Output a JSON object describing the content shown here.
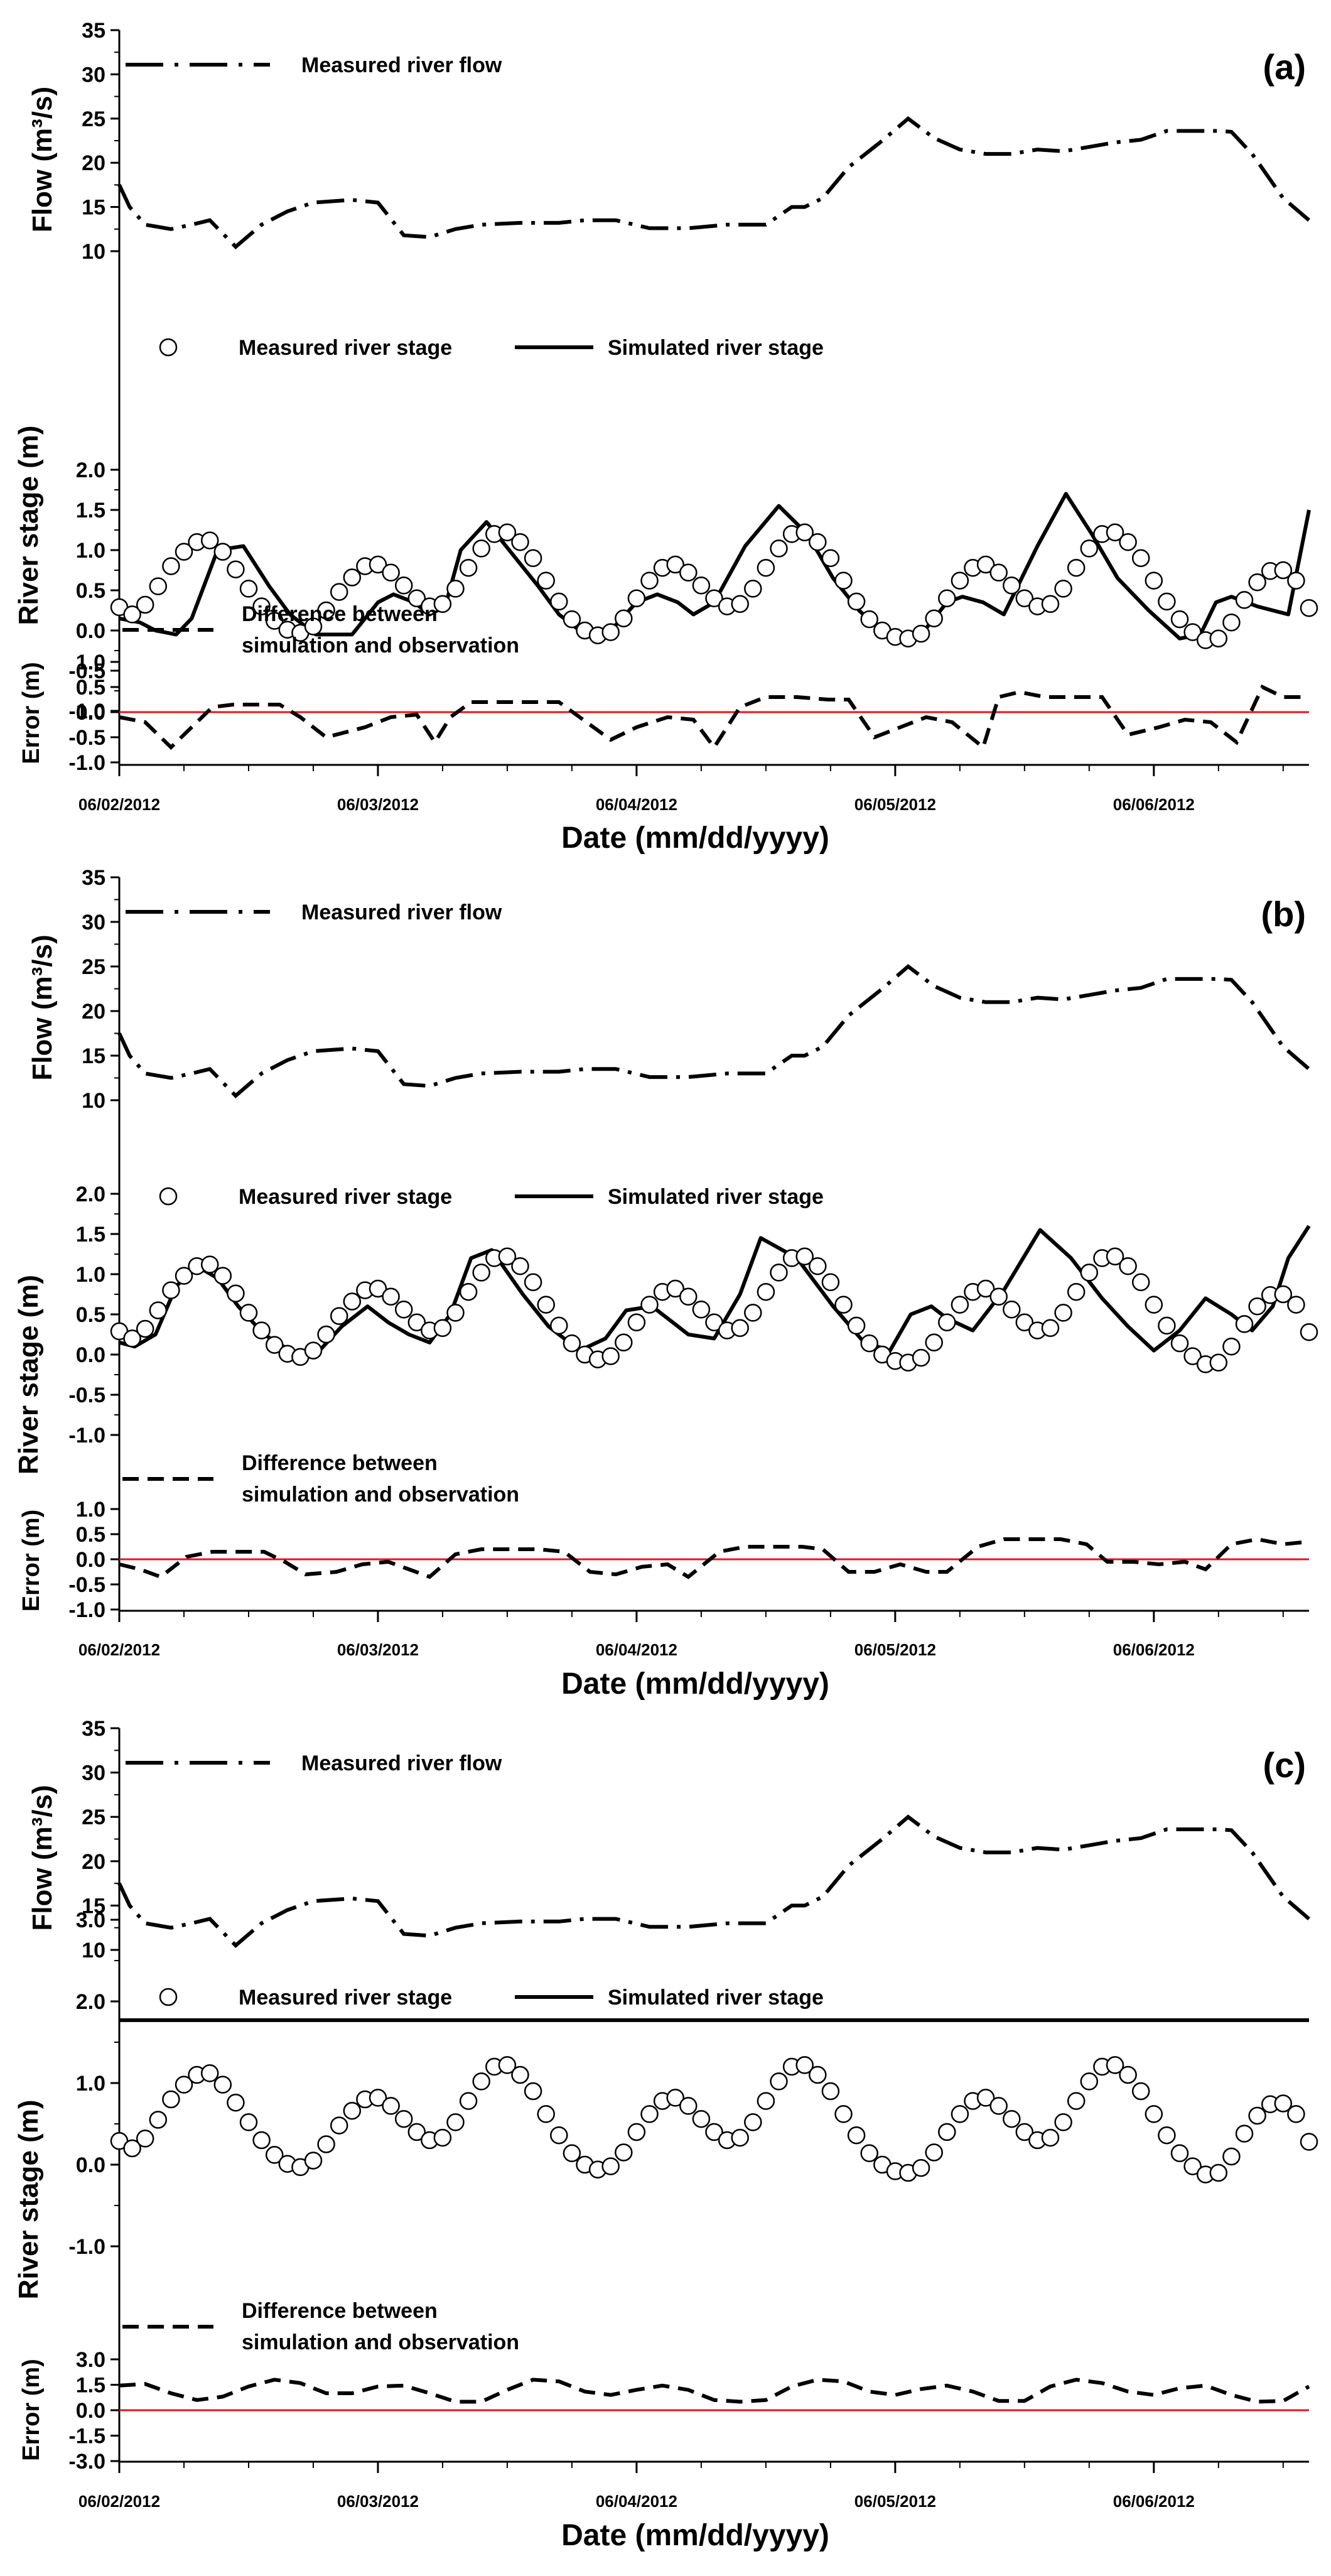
{
  "figure": {
    "panels": [
      {
        "label": "(a)",
        "flow_legend": "Measured river flow",
        "stage_legend_measured": "Measured river stage",
        "stage_legend_simulated": "Simulated river stage",
        "error_legend_line1": "Difference between",
        "error_legend_line2": "simulation and observation",
        "flow_ylabel": "Flow (m³/s)",
        "stage_ylabel": "River stage (m)",
        "error_ylabel": "Error (m)",
        "xlabel": "Date (mm/dd/yyyy)"
      },
      {
        "label": "(b)",
        "flow_legend": "Measured river flow",
        "stage_legend_measured": "Measured river stage",
        "stage_legend_simulated": "Simulated river stage",
        "error_legend_line1": "Difference between",
        "error_legend_line2": "simulation and observation",
        "flow_ylabel": "Flow (m³/s)",
        "stage_ylabel": "River stage (m)",
        "error_ylabel": "Error (m)",
        "xlabel": "Date (mm/dd/yyyy)"
      },
      {
        "label": "(c)",
        "flow_legend": "Measured river flow",
        "stage_legend_measured": "Measured river stage",
        "stage_legend_simulated": "Simulated river stage",
        "error_legend_line1": "Difference between",
        "error_legend_line2": "simulation and observation",
        "flow_ylabel": "Flow (m³/s)",
        "stage_ylabel": "River stage (m)",
        "error_ylabel": "Error (m)",
        "xlabel": "Date (mm/dd/yyyy)"
      }
    ]
  },
  "chart_data": {
    "type": "line",
    "x_range_days": [
      0,
      4.6
    ],
    "date_ticks": [
      "06/02/2012",
      "06/03/2012",
      "06/04/2012",
      "06/05/2012",
      "06/06/2012"
    ],
    "flow": {
      "ylim": [
        10,
        35
      ],
      "ticks": [
        "10",
        "15",
        "20",
        "25",
        "30",
        "35"
      ],
      "series_name": "Measured river flow",
      "t": [
        0,
        0.04,
        0.1,
        0.2,
        0.28,
        0.35,
        0.45,
        0.55,
        0.65,
        0.75,
        0.9,
        1.0,
        1.1,
        1.2,
        1.3,
        1.4,
        1.55,
        1.7,
        1.8,
        1.92,
        2.05,
        2.2,
        2.35,
        2.5,
        2.6,
        2.65,
        2.72,
        2.82,
        2.95,
        3.05,
        3.15,
        3.25,
        3.35,
        3.45,
        3.55,
        3.65,
        3.75,
        3.85,
        3.95,
        4.05,
        4.15,
        4.25,
        4.3,
        4.38,
        4.5,
        4.6
      ],
      "values": [
        17.5,
        15,
        13,
        12.5,
        13,
        13.5,
        10.5,
        13,
        14.5,
        15.5,
        15.8,
        15.5,
        11.8,
        11.6,
        12.5,
        13,
        13.2,
        13.2,
        13.5,
        13.5,
        12.6,
        12.6,
        13,
        13,
        15,
        15,
        16,
        19.5,
        22.5,
        25,
        22.8,
        21.5,
        21,
        21,
        21.5,
        21.3,
        21.8,
        22.3,
        22.6,
        23.6,
        23.6,
        23.6,
        23.5,
        21,
        16,
        13.5
      ]
    },
    "stage": {
      "ticks": [
        "-1.0",
        "-0.5",
        "0.0",
        "0.5",
        "1.0",
        "1.5",
        "2.0"
      ],
      "ticks_c": [
        "-1.0",
        "0.0",
        "1.0",
        "2.0",
        "3.0"
      ],
      "measured": {
        "name": "Measured river stage",
        "t": [
          0,
          0.05,
          0.1,
          0.15,
          0.2,
          0.25,
          0.3,
          0.35,
          0.4,
          0.45,
          0.5,
          0.55,
          0.6,
          0.65,
          0.7,
          0.75,
          0.8,
          0.85,
          0.9,
          0.95,
          1.0,
          1.05,
          1.1,
          1.15,
          1.2,
          1.25,
          1.3,
          1.35,
          1.4,
          1.45,
          1.5,
          1.55,
          1.6,
          1.65,
          1.7,
          1.75,
          1.8,
          1.85,
          1.9,
          1.95,
          2.0,
          2.05,
          2.1,
          2.15,
          2.2,
          2.25,
          2.3,
          2.35,
          2.4,
          2.45,
          2.5,
          2.55,
          2.6,
          2.65,
          2.7,
          2.75,
          2.8,
          2.85,
          2.9,
          2.95,
          3.0,
          3.05,
          3.1,
          3.15,
          3.2,
          3.25,
          3.3,
          3.35,
          3.4,
          3.45,
          3.5,
          3.55,
          3.6,
          3.65,
          3.7,
          3.75,
          3.8,
          3.85,
          3.9,
          3.95,
          4.0,
          4.05,
          4.1,
          4.15,
          4.2,
          4.25,
          4.3,
          4.35,
          4.4,
          4.45,
          4.5,
          4.55,
          4.6
        ],
        "values": [
          0.29,
          0.2,
          0.32,
          0.55,
          0.8,
          0.98,
          1.1,
          1.12,
          0.98,
          0.76,
          0.52,
          0.3,
          0.12,
          0.01,
          -0.03,
          0.05,
          0.25,
          0.48,
          0.66,
          0.8,
          0.82,
          0.72,
          0.56,
          0.4,
          0.3,
          0.33,
          0.52,
          0.78,
          1.02,
          1.2,
          1.22,
          1.1,
          0.9,
          0.62,
          0.36,
          0.14,
          0.0,
          -0.06,
          -0.02,
          0.15,
          0.4,
          0.62,
          0.78,
          0.82,
          0.72,
          0.56,
          0.4,
          0.3,
          0.33,
          0.52,
          0.78,
          1.02,
          1.2,
          1.22,
          1.1,
          0.9,
          0.62,
          0.36,
          0.14,
          0.0,
          -0.08,
          -0.1,
          -0.04,
          0.15,
          0.4,
          0.62,
          0.78,
          0.82,
          0.72,
          0.56,
          0.4,
          0.3,
          0.33,
          0.52,
          0.78,
          1.02,
          1.2,
          1.22,
          1.1,
          0.9,
          0.62,
          0.36,
          0.14,
          -0.02,
          -0.12,
          -0.1,
          0.1,
          0.38,
          0.6,
          0.74,
          0.75,
          0.62,
          0.28
        ]
      },
      "simulated_a": {
        "name": "Simulated river stage",
        "t": [
          0,
          0.08,
          0.14,
          0.22,
          0.28,
          0.38,
          0.48,
          0.58,
          0.66,
          0.76,
          0.9,
          1.0,
          1.06,
          1.14,
          1.2,
          1.26,
          1.32,
          1.42,
          1.52,
          1.62,
          1.7,
          1.8,
          1.9,
          2.0,
          2.08,
          2.16,
          2.22,
          2.3,
          2.42,
          2.55,
          2.66,
          2.76,
          2.86,
          2.98,
          3.1,
          3.2,
          3.26,
          3.34,
          3.42,
          3.55,
          3.66,
          3.76,
          3.86,
          3.98,
          4.1,
          4.18,
          4.24,
          4.3,
          4.4,
          4.52,
          4.6
        ],
        "values": [
          0.15,
          0.1,
          0.0,
          -0.05,
          0.15,
          1.0,
          1.05,
          0.55,
          0.2,
          -0.05,
          -0.05,
          0.35,
          0.45,
          0.35,
          0.2,
          0.3,
          1.0,
          1.35,
          0.95,
          0.55,
          0.2,
          -0.05,
          0.0,
          0.35,
          0.45,
          0.35,
          0.2,
          0.35,
          1.05,
          1.55,
          1.2,
          0.65,
          0.25,
          -0.1,
          -0.05,
          0.35,
          0.42,
          0.35,
          0.2,
          1.05,
          1.7,
          1.2,
          0.65,
          0.25,
          -0.1,
          -0.05,
          0.35,
          0.42,
          0.3,
          0.2,
          1.5
        ]
      },
      "simulated_b": {
        "name": "Simulated river stage",
        "t": [
          0,
          0.06,
          0.14,
          0.22,
          0.3,
          0.38,
          0.46,
          0.56,
          0.66,
          0.76,
          0.86,
          0.96,
          1.04,
          1.12,
          1.2,
          1.28,
          1.36,
          1.44,
          1.56,
          1.66,
          1.78,
          1.88,
          1.96,
          2.06,
          2.14,
          2.2,
          2.3,
          2.4,
          2.48,
          2.62,
          2.76,
          2.88,
          2.98,
          3.06,
          3.14,
          3.2,
          3.3,
          3.42,
          3.56,
          3.68,
          3.8,
          3.9,
          4.0,
          4.1,
          4.2,
          4.3,
          4.38,
          4.46,
          4.52,
          4.6
        ],
        "values": [
          0.15,
          0.1,
          0.25,
          0.85,
          1.1,
          0.95,
          0.6,
          0.25,
          0.05,
          0.0,
          0.35,
          0.6,
          0.4,
          0.25,
          0.15,
          0.5,
          1.2,
          1.3,
          0.75,
          0.35,
          0.05,
          0.2,
          0.55,
          0.6,
          0.4,
          0.25,
          0.2,
          0.75,
          1.45,
          1.2,
          0.6,
          0.15,
          0.05,
          0.5,
          0.6,
          0.45,
          0.3,
          0.8,
          1.55,
          1.2,
          0.7,
          0.35,
          0.05,
          0.3,
          0.7,
          0.5,
          0.3,
          0.6,
          1.2,
          1.6
        ]
      },
      "simulated_c_constant": 1.77
    },
    "error": {
      "ticks": [
        "-1.0",
        "-0.5",
        "0.0",
        "0.5",
        "1.0"
      ],
      "ticks_c": [
        "-3.0",
        "-1.5",
        "0.0",
        "1.5",
        "3.0"
      ],
      "a": {
        "name": "Difference between simulation and observation",
        "t": [
          0,
          0.1,
          0.2,
          0.28,
          0.36,
          0.44,
          0.56,
          0.62,
          0.7,
          0.8,
          0.95,
          1.05,
          1.15,
          1.22,
          1.28,
          1.36,
          1.48,
          1.56,
          1.64,
          1.7,
          1.78,
          1.9,
          2.0,
          2.12,
          2.22,
          2.3,
          2.4,
          2.5,
          2.62,
          2.74,
          2.82,
          2.92,
          3.02,
          3.12,
          3.22,
          3.34,
          3.4,
          3.48,
          3.58,
          3.68,
          3.8,
          3.9,
          4.02,
          4.12,
          4.22,
          4.32,
          4.42,
          4.5,
          4.6
        ],
        "values": [
          -0.1,
          -0.2,
          -0.7,
          -0.3,
          0.1,
          0.15,
          0.15,
          0.15,
          -0.1,
          -0.5,
          -0.3,
          -0.1,
          -0.05,
          -0.6,
          -0.1,
          0.2,
          0.2,
          0.2,
          0.2,
          0.2,
          -0.1,
          -0.55,
          -0.3,
          -0.1,
          -0.15,
          -0.7,
          0.1,
          0.3,
          0.3,
          0.25,
          0.25,
          -0.5,
          -0.3,
          -0.1,
          -0.2,
          -0.7,
          0.3,
          0.4,
          0.3,
          0.3,
          0.3,
          -0.45,
          -0.3,
          -0.15,
          -0.2,
          -0.6,
          0.5,
          0.3,
          0.3
        ]
      },
      "b": {
        "name": "Difference between simulation and observation",
        "t": [
          0,
          0.08,
          0.16,
          0.26,
          0.36,
          0.46,
          0.56,
          0.64,
          0.72,
          0.84,
          0.94,
          1.04,
          1.12,
          1.2,
          1.3,
          1.4,
          1.52,
          1.62,
          1.72,
          1.82,
          1.92,
          2.02,
          2.12,
          2.2,
          2.32,
          2.42,
          2.54,
          2.64,
          2.72,
          2.82,
          2.92,
          3.02,
          3.12,
          3.2,
          3.32,
          3.42,
          3.54,
          3.64,
          3.74,
          3.82,
          3.92,
          4.02,
          4.12,
          4.2,
          4.3,
          4.4,
          4.5,
          4.6
        ],
        "values": [
          -0.1,
          -0.2,
          -0.35,
          0.05,
          0.15,
          0.15,
          0.15,
          -0.05,
          -0.3,
          -0.25,
          -0.1,
          -0.05,
          -0.2,
          -0.35,
          0.1,
          0.2,
          0.2,
          0.2,
          0.15,
          -0.25,
          -0.3,
          -0.15,
          -0.1,
          -0.35,
          0.15,
          0.25,
          0.25,
          0.25,
          0.2,
          -0.25,
          -0.25,
          -0.1,
          -0.25,
          -0.25,
          0.25,
          0.4,
          0.4,
          0.4,
          0.3,
          -0.05,
          -0.05,
          -0.1,
          -0.05,
          -0.2,
          0.3,
          0.4,
          0.3,
          0.35
        ]
      },
      "c": {
        "name": "Difference between simulation and observation",
        "t": [
          0,
          0.1,
          0.2,
          0.3,
          0.4,
          0.5,
          0.6,
          0.7,
          0.8,
          0.9,
          1.0,
          1.1,
          1.2,
          1.3,
          1.4,
          1.5,
          1.6,
          1.7,
          1.8,
          1.9,
          2.0,
          2.1,
          2.2,
          2.3,
          2.4,
          2.5,
          2.6,
          2.7,
          2.8,
          2.9,
          3.0,
          3.1,
          3.2,
          3.3,
          3.4,
          3.5,
          3.6,
          3.7,
          3.8,
          3.9,
          4.0,
          4.1,
          4.2,
          4.3,
          4.4,
          4.5,
          4.6
        ],
        "values": [
          1.45,
          1.55,
          1.0,
          0.6,
          0.8,
          1.4,
          1.8,
          1.6,
          1.0,
          1.0,
          1.4,
          1.45,
          1.0,
          0.5,
          0.5,
          1.2,
          1.8,
          1.7,
          1.1,
          0.9,
          1.2,
          1.45,
          1.2,
          0.6,
          0.5,
          0.6,
          1.4,
          1.8,
          1.7,
          1.1,
          0.9,
          1.25,
          1.45,
          1.1,
          0.55,
          0.55,
          1.4,
          1.8,
          1.6,
          1.1,
          0.9,
          1.3,
          1.45,
          0.9,
          0.5,
          0.55,
          1.4
        ]
      }
    }
  }
}
